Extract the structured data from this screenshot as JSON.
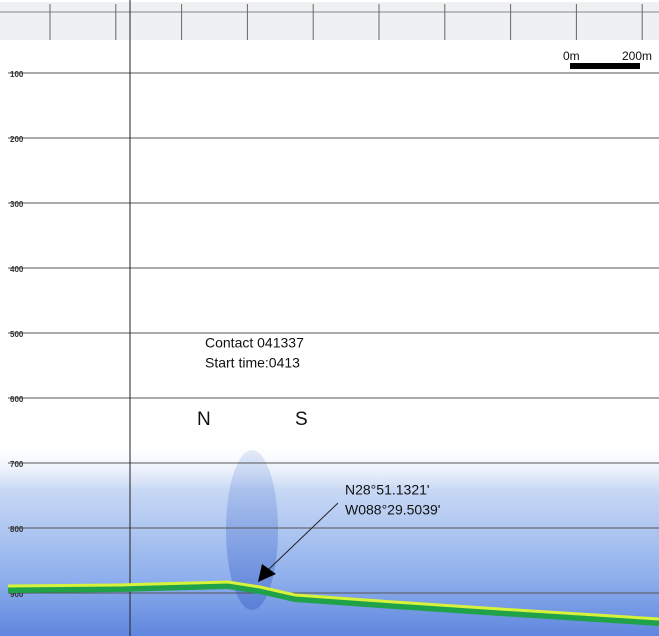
{
  "depth_axis": {
    "labels": [
      100,
      200,
      300,
      400,
      500,
      600,
      700,
      800,
      900
    ]
  },
  "scale_bar": {
    "start_label": "0m",
    "end_label": "200m"
  },
  "annotations": {
    "contact": "Contact 041337",
    "start_time": "Start time:0413",
    "north": "N",
    "south": "S",
    "latitude": "N28°51.1321'",
    "longitude": "W088°29.5039'"
  }
}
